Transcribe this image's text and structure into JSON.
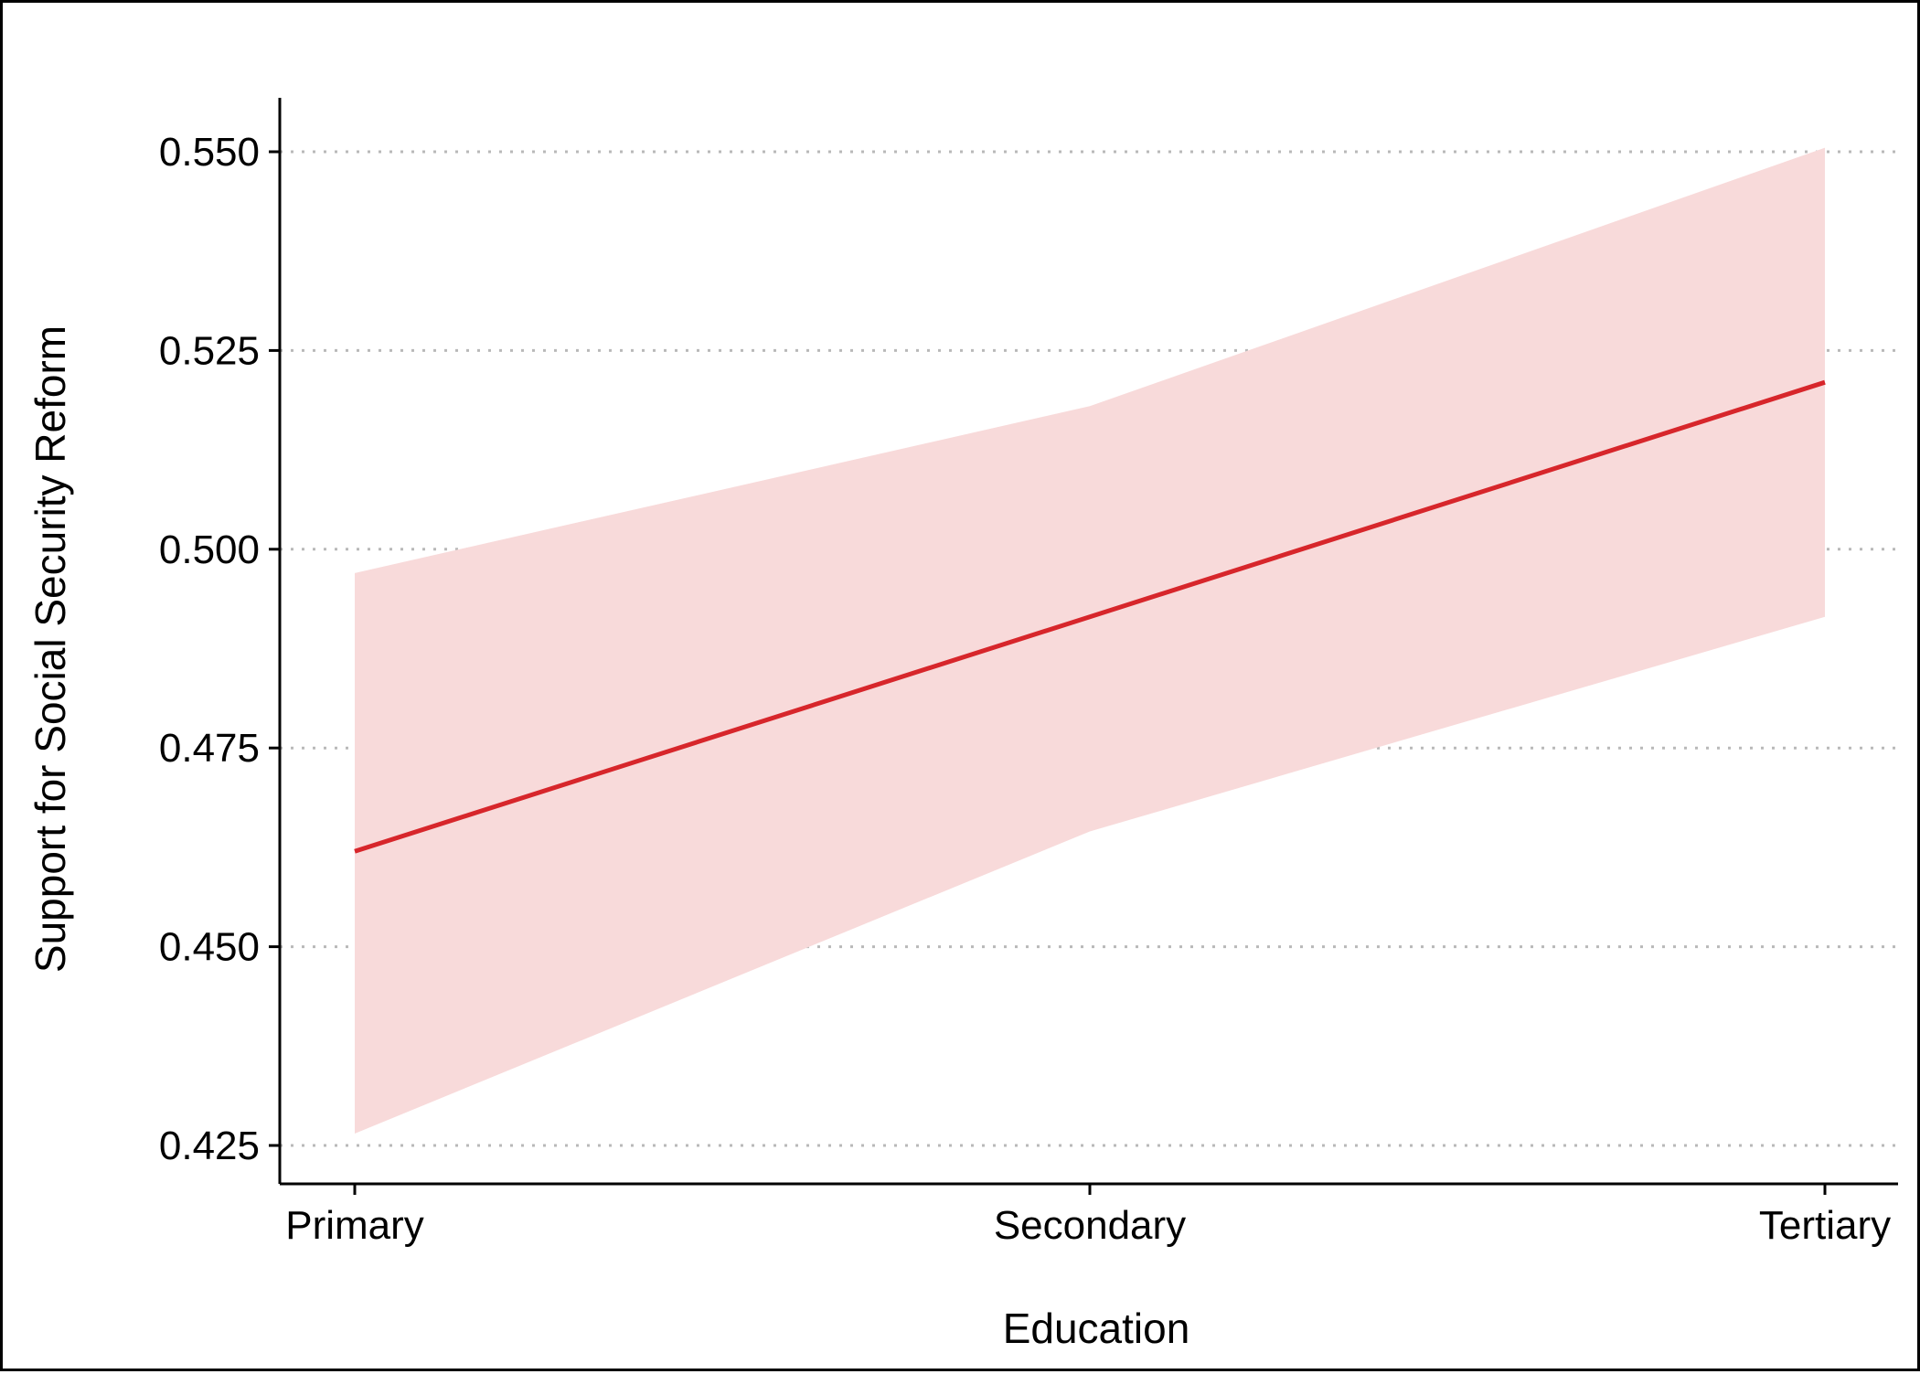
{
  "chart_data": {
    "type": "line",
    "title": "",
    "xlabel": "Education",
    "ylabel": "Support for Social Security Reform",
    "categories": [
      "Primary",
      "Secondary",
      "Tertiary"
    ],
    "series": [
      {
        "values": [
          0.462,
          0.4915,
          0.521
        ],
        "lower": [
          0.4265,
          0.4645,
          0.4915
        ],
        "upper": [
          0.497,
          0.518,
          0.5505
        ],
        "color": "#d7262b",
        "band_color": "#f8dada"
      }
    ],
    "yticks": [
      "0.425",
      "0.450",
      "0.475",
      "0.500",
      "0.525",
      "0.550"
    ],
    "ylim": [
      0.42,
      0.5565
    ],
    "grid": "horizontal dotted",
    "legend": "none"
  }
}
